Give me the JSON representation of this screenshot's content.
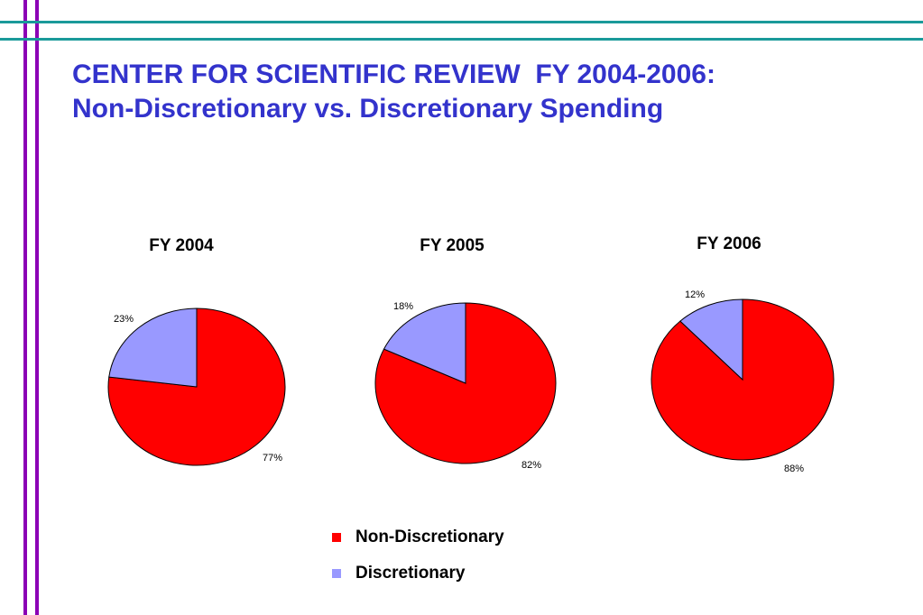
{
  "slide": {
    "title_line1": "CENTER FOR SCIENTIFIC REVIEW  FY 2004-2006:",
    "title_line2": "Non-Discretionary vs. Discretionary Spending"
  },
  "colors": {
    "title": "#3333cc",
    "frame_lines_vertical": "#8b00b5",
    "frame_lines_horizontal": "#1a9a9a"
  },
  "legend": {
    "items": [
      {
        "label": "Non-Discretionary",
        "color": "#ff0000"
      },
      {
        "label": "Discretionary",
        "color": "#9999ff"
      }
    ]
  },
  "chart_data": [
    {
      "type": "pie",
      "title": "FY 2004",
      "categories": [
        "Non-Discretionary",
        "Discretionary"
      ],
      "values": [
        77,
        23
      ],
      "labels": [
        "77%",
        "23%"
      ],
      "colors": [
        "#ff0000",
        "#9999ff"
      ]
    },
    {
      "type": "pie",
      "title": "FY 2005",
      "categories": [
        "Non-Discretionary",
        "Discretionary"
      ],
      "values": [
        82,
        18
      ],
      "labels": [
        "82%",
        "18%"
      ],
      "colors": [
        "#ff0000",
        "#9999ff"
      ]
    },
    {
      "type": "pie",
      "title": "FY 2006",
      "categories": [
        "Non-Discretionary",
        "Discretionary"
      ],
      "values": [
        88,
        12
      ],
      "labels": [
        "88%",
        "12%"
      ],
      "colors": [
        "#ff0000",
        "#9999ff"
      ]
    }
  ]
}
